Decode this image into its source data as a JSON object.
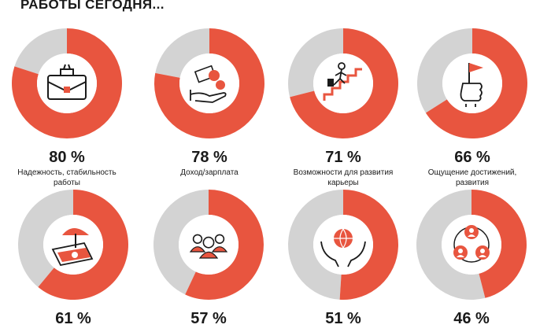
{
  "header": {
    "title": "РАБОТЫ СЕГОДНЯ..."
  },
  "colors": {
    "accent": "#e8553f",
    "track": "#d3d3d3",
    "dark": "#1a1a1a"
  },
  "chart_data": {
    "type": "pie",
    "title": "РАБОТЫ СЕГОДНЯ...",
    "items": [
      {
        "label": "Надежность, стабильность работы",
        "value": 80,
        "display": "80 %",
        "icon": "briefcase-icon"
      },
      {
        "label": "Доход/зарплата",
        "value": 78,
        "display": "78 %",
        "icon": "money-hand-icon"
      },
      {
        "label": "Возможности для развития карьеры",
        "value": 71,
        "display": "71 %",
        "icon": "career-stairs-icon"
      },
      {
        "label": "Ощущение достижений, развития",
        "value": 66,
        "display": "66 %",
        "icon": "flag-fist-icon"
      },
      {
        "label": "",
        "value": 61,
        "display": "61 %",
        "icon": "beach-umbrella-icon"
      },
      {
        "label": "",
        "value": 57,
        "display": "57 %",
        "icon": "team-people-icon"
      },
      {
        "label": "",
        "value": 51,
        "display": "51 %",
        "icon": "globe-hands-icon"
      },
      {
        "label": "",
        "value": 46,
        "display": "46 %",
        "icon": "network-people-icon"
      }
    ]
  }
}
